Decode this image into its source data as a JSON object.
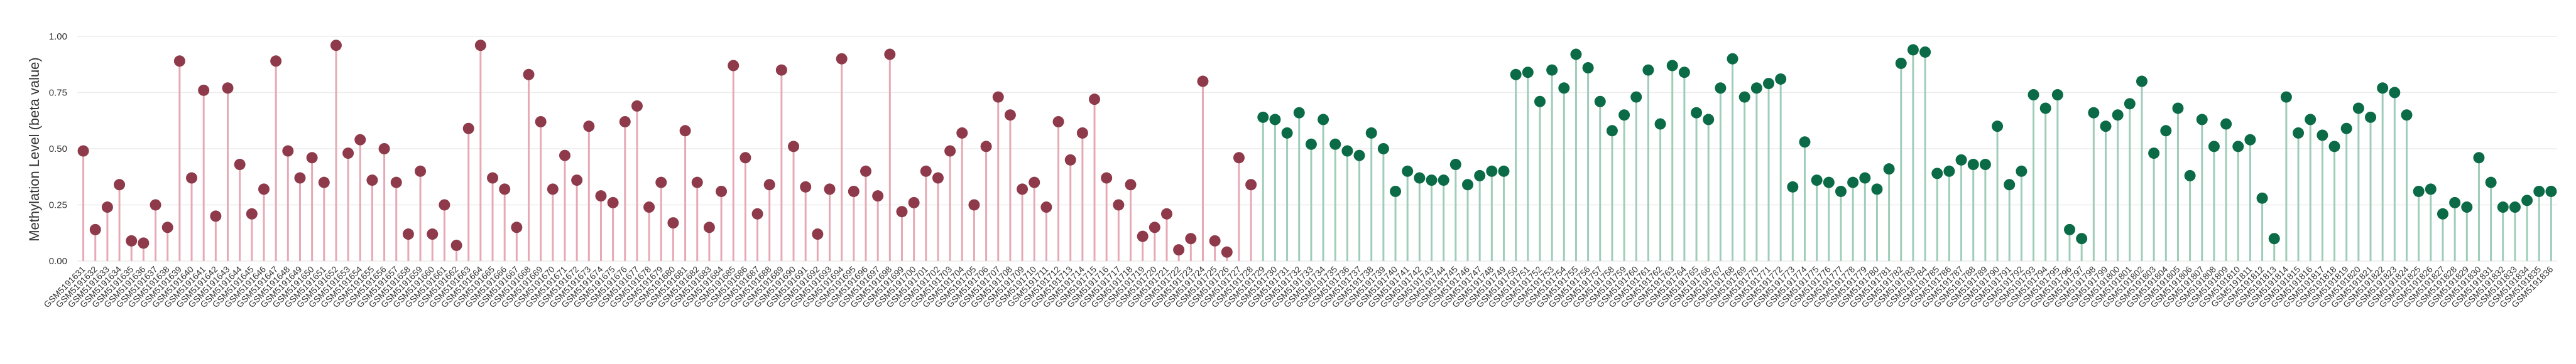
{
  "chart_data": {
    "type": "lollipop",
    "y_label": "Methylation Level (beta value)",
    "ylim": [
      0,
      1.05
    ],
    "yticks": [
      {
        "value": 0,
        "label": "0.00"
      },
      {
        "value": 0.25,
        "label": "0.25"
      },
      {
        "value": 0.5,
        "label": "0.50"
      },
      {
        "value": 0.75,
        "label": "0.75"
      },
      {
        "value": 1,
        "label": "1.00"
      }
    ],
    "grid": true,
    "categories": [
      "GSM5191631",
      "GSM5191632",
      "GSM5191633",
      "GSM5191634",
      "GSM5191635",
      "GSM5191636",
      "GSM5191637",
      "GSM5191638",
      "GSM5191639",
      "GSM5191640",
      "GSM5191641",
      "GSM5191642",
      "GSM5191643",
      "GSM5191644",
      "GSM5191645",
      "GSM5191646",
      "GSM5191647",
      "GSM5191648",
      "GSM5191649",
      "GSM5191650",
      "GSM5191651",
      "GSM5191652",
      "GSM5191653",
      "GSM5191654",
      "GSM5191655",
      "GSM5191656",
      "GSM5191657",
      "GSM5191658",
      "GSM5191659",
      "GSM5191660",
      "GSM5191661",
      "GSM5191662",
      "GSM5191663",
      "GSM5191664",
      "GSM5191665",
      "GSM5191666",
      "GSM5191667",
      "GSM5191668",
      "GSM5191669",
      "GSM5191670",
      "GSM5191671",
      "GSM5191672",
      "GSM5191673",
      "GSM5191674",
      "GSM5191675",
      "GSM5191676",
      "GSM5191677",
      "GSM5191678",
      "GSM5191679",
      "GSM5191680",
      "GSM5191681",
      "GSM5191682",
      "GSM5191683",
      "GSM5191684",
      "GSM5191685",
      "GSM5191686",
      "GSM5191687",
      "GSM5191688",
      "GSM5191689",
      "GSM5191690",
      "GSM5191691",
      "GSM5191692",
      "GSM5191693",
      "GSM5191694",
      "GSM5191695",
      "GSM5191696",
      "GSM5191697",
      "GSM5191698",
      "GSM5191699",
      "GSM5191700",
      "GSM5191701",
      "GSM5191702",
      "GSM5191703",
      "GSM5191704",
      "GSM5191705",
      "GSM5191706",
      "GSM5191707",
      "GSM5191708",
      "GSM5191709",
      "GSM5191710",
      "GSM5191711",
      "GSM5191712",
      "GSM5191713",
      "GSM5191714",
      "GSM5191715",
      "GSM5191716",
      "GSM5191717",
      "GSM5191718",
      "GSM5191719",
      "GSM5191720",
      "GSM5191721",
      "GSM5191722",
      "GSM5191723",
      "GSM5191724",
      "GSM5191725",
      "GSM5191726",
      "GSM5191727",
      "GSM5191728",
      "GSM5191729",
      "GSM5191730",
      "GSM5191731",
      "GSM5191732",
      "GSM5191733",
      "GSM5191734",
      "GSM5191735",
      "GSM5191736",
      "GSM5191737",
      "GSM5191738",
      "GSM5191739",
      "GSM5191740",
      "GSM5191741",
      "GSM5191742",
      "GSM5191743",
      "GSM5191744",
      "GSM5191745",
      "GSM5191746",
      "GSM5191747",
      "GSM5191748",
      "GSM5191749",
      "GSM5191750",
      "GSM5191751",
      "GSM5191752",
      "GSM5191753",
      "GSM5191754",
      "GSM5191755",
      "GSM5191756",
      "GSM5191757",
      "GSM5191758",
      "GSM5191759",
      "GSM5191760",
      "GSM5191761",
      "GSM5191762",
      "GSM5191763",
      "GSM5191764",
      "GSM5191765",
      "GSM5191766",
      "GSM5191767",
      "GSM5191768",
      "GSM5191769",
      "GSM5191770",
      "GSM5191771",
      "GSM5191772",
      "GSM5191773",
      "GSM5191774",
      "GSM5191775",
      "GSM5191776",
      "GSM5191777",
      "GSM5191778",
      "GSM5191779",
      "GSM5191780",
      "GSM5191781",
      "GSM5191782",
      "GSM5191783",
      "GSM5191784",
      "GSM5191785",
      "GSM5191786",
      "GSM5191787",
      "GSM5191788",
      "GSM5191789",
      "GSM5191790",
      "GSM5191791",
      "GSM5191792",
      "GSM5191793",
      "GSM5191794",
      "GSM5191795",
      "GSM5191796",
      "GSM5191797",
      "GSM5191798",
      "GSM5191799",
      "GSM5191800",
      "GSM5191801",
      "GSM5191802",
      "GSM5191803",
      "GSM5191804",
      "GSM5191805",
      "GSM5191806",
      "GSM5191807",
      "GSM5191808",
      "GSM5191809",
      "GSM5191810",
      "GSM5191811",
      "GSM5191812",
      "GSM5191813",
      "GSM5191814",
      "GSM5191815",
      "GSM5191816",
      "GSM5191817",
      "GSM5191818",
      "GSM5191819",
      "GSM5191820",
      "GSM5191821",
      "GSM5191822",
      "GSM5191823",
      "GSM5191824",
      "GSM5191825",
      "GSM5191826",
      "GSM5191827",
      "GSM5191828",
      "GSM5191829",
      "GSM5191830",
      "GSM5191831",
      "GSM5191832",
      "GSM5191833",
      "GSM5191834",
      "GSM5191835",
      "GSM5191836"
    ],
    "series": [
      {
        "color": "#8e3a4a",
        "stem_color": "#e6aab6",
        "values": [
          0.49,
          0.14,
          0.24,
          0.34,
          0.09,
          0.08,
          0.25,
          0.15,
          0.89,
          0.37,
          0.76,
          0.2,
          0.77,
          0.43,
          0.21,
          0.32,
          0.89,
          0.49,
          0.37,
          0.46,
          0.35,
          0.96,
          0.48,
          0.54,
          0.36,
          0.5,
          0.35,
          0.12,
          0.4,
          0.12,
          0.25,
          0.07,
          0.59,
          0.96,
          0.37,
          0.32,
          0.15,
          0.83,
          0.62,
          0.32,
          0.47,
          0.36,
          0.6,
          0.29,
          0.26,
          0.62,
          0.69,
          0.24,
          0.35,
          0.17,
          0.58,
          0.35,
          0.15,
          0.31,
          0.87,
          0.46,
          0.21,
          0.34,
          0.85,
          0.51,
          0.33,
          0.12,
          0.32,
          0.9,
          0.31,
          0.4,
          0.29,
          0.92,
          0.22,
          0.26,
          0.4,
          0.37,
          0.49,
          0.57,
          0.25,
          0.51,
          0.73,
          0.65,
          0.32,
          0.35,
          0.24,
          0.62,
          0.45,
          0.57,
          0.72,
          0.37,
          0.25,
          0.34,
          0.11,
          0.15,
          0.21,
          0.05,
          0.1,
          0.8,
          0.09,
          0.04,
          0.46,
          0.34,
          null,
          null,
          null,
          null,
          null,
          null,
          null,
          null,
          null,
          null,
          null,
          null,
          null,
          null,
          null,
          null,
          null,
          null,
          null,
          null,
          null,
          null,
          null,
          null,
          null,
          null,
          null,
          null,
          null,
          null,
          null,
          null,
          null,
          null,
          null,
          null,
          null,
          null,
          null,
          null,
          null,
          null,
          null,
          null,
          null,
          null,
          null,
          null,
          null,
          null,
          null,
          null,
          null,
          null,
          null,
          null,
          null,
          null,
          null,
          null,
          null,
          null,
          null,
          null,
          null,
          null,
          null,
          null,
          null,
          null,
          null,
          null,
          null,
          null,
          null,
          null,
          null,
          null,
          null,
          null,
          null,
          null,
          null,
          null,
          null,
          null,
          null,
          null,
          null,
          null,
          null,
          null,
          null,
          null,
          null,
          null,
          null,
          null,
          null,
          null,
          null,
          null,
          null,
          null,
          null,
          null,
          null,
          null
        ]
      },
      {
        "color": "#0b6b47",
        "stem_color": "#9fcdb9",
        "values": [
          null,
          null,
          null,
          null,
          null,
          null,
          null,
          null,
          null,
          null,
          null,
          null,
          null,
          null,
          null,
          null,
          null,
          null,
          null,
          null,
          null,
          null,
          null,
          null,
          null,
          null,
          null,
          null,
          null,
          null,
          null,
          null,
          null,
          null,
          null,
          null,
          null,
          null,
          null,
          null,
          null,
          null,
          null,
          null,
          null,
          null,
          null,
          null,
          null,
          null,
          null,
          null,
          null,
          null,
          null,
          null,
          null,
          null,
          null,
          null,
          null,
          null,
          null,
          null,
          null,
          null,
          null,
          null,
          null,
          null,
          null,
          null,
          null,
          null,
          null,
          null,
          null,
          null,
          null,
          null,
          null,
          null,
          null,
          null,
          null,
          null,
          null,
          null,
          null,
          null,
          null,
          null,
          null,
          null,
          null,
          null,
          null,
          null,
          0.64,
          0.63,
          0.57,
          0.66,
          0.52,
          0.63,
          0.52,
          0.49,
          0.47,
          0.57,
          0.5,
          0.31,
          0.4,
          0.37,
          0.36,
          0.36,
          0.43,
          0.34,
          0.38,
          0.4,
          0.4,
          0.83,
          0.84,
          0.71,
          0.85,
          0.77,
          0.92,
          0.86,
          0.71,
          0.58,
          0.65,
          0.73,
          0.85,
          0.61,
          0.87,
          0.84,
          0.66,
          0.63,
          0.77,
          0.9,
          0.73,
          0.77,
          0.79,
          0.81,
          0.33,
          0.53,
          0.36,
          0.35,
          0.31,
          0.35,
          0.37,
          0.32,
          0.41,
          0.88,
          0.94,
          0.93,
          0.39,
          0.4,
          0.45,
          0.43,
          0.43,
          0.6,
          0.34,
          0.4,
          0.74,
          0.68,
          0.74,
          0.14,
          0.1,
          0.66,
          0.6,
          0.65,
          0.7,
          0.8,
          0.48,
          0.58,
          0.68,
          0.38,
          0.63,
          0.51,
          0.61,
          0.51,
          0.54,
          0.28,
          0.1,
          0.73,
          0.57,
          0.63,
          0.56,
          0.51,
          0.59,
          0.68,
          0.64,
          0.77,
          0.75,
          0.65,
          0.31,
          0.32,
          0.21,
          0.26,
          0.24,
          0.46,
          0.35,
          0.24,
          0.24,
          0.27,
          0.31,
          0.31
        ]
      }
    ]
  }
}
